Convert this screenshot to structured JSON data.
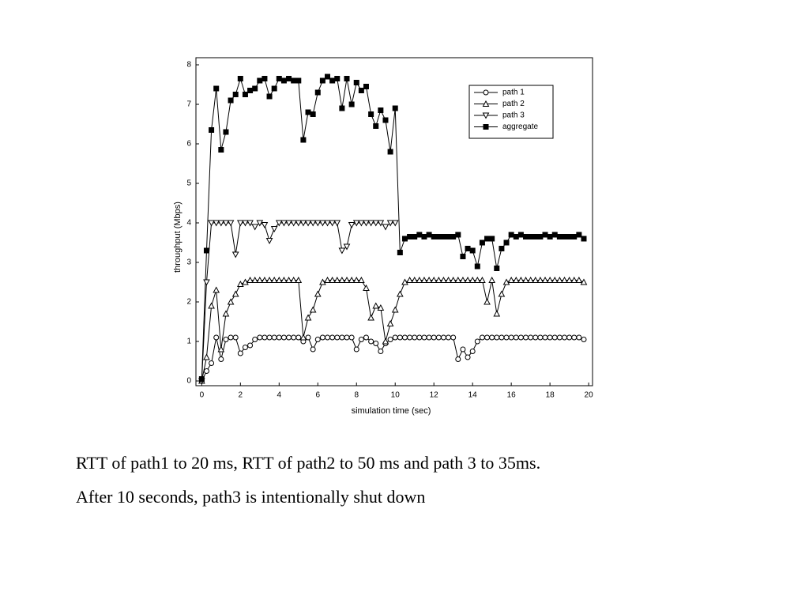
{
  "chart_data": {
    "type": "line",
    "xlabel": "simulation time (sec)",
    "ylabel": "throughput (Mbps)",
    "xlim": [
      -0.3,
      20.2
    ],
    "ylim": [
      -0.12,
      8.18
    ],
    "xticks": [
      0,
      2,
      4,
      6,
      8,
      10,
      12,
      14,
      16,
      18,
      20
    ],
    "yticks": [
      0,
      1,
      2,
      3,
      4,
      5,
      6,
      7,
      8
    ],
    "legend": "upper right",
    "x": [
      0,
      0.25,
      0.5,
      0.75,
      1,
      1.25,
      1.5,
      1.75,
      2,
      2.25,
      2.5,
      2.75,
      3,
      3.25,
      3.5,
      3.75,
      4,
      4.25,
      4.5,
      4.75,
      5,
      5.25,
      5.5,
      5.75,
      6,
      6.25,
      6.5,
      6.75,
      7,
      7.25,
      7.5,
      7.75,
      8,
      8.25,
      8.5,
      8.75,
      9,
      9.25,
      9.5,
      9.75,
      10,
      10.25,
      10.5,
      10.75,
      11,
      11.25,
      11.5,
      11.75,
      12,
      12.25,
      12.5,
      12.75,
      13,
      13.25,
      13.5,
      13.75,
      14,
      14.25,
      14.5,
      14.75,
      15,
      15.25,
      15.5,
      15.75,
      16,
      16.25,
      16.5,
      16.75,
      17,
      17.25,
      17.5,
      17.75,
      18,
      18.25,
      18.5,
      18.75,
      19,
      19.25,
      19.5,
      19.75
    ],
    "series": [
      {
        "name": "path 1",
        "color": "#000000",
        "marker": "circle",
        "values": [
          0,
          0.25,
          0.45,
          1.1,
          0.55,
          1.05,
          1.1,
          1.1,
          0.7,
          0.85,
          0.9,
          1.05,
          1.1,
          1.1,
          1.1,
          1.1,
          1.1,
          1.1,
          1.1,
          1.1,
          1.1,
          1.0,
          1.1,
          0.8,
          1.05,
          1.1,
          1.1,
          1.1,
          1.1,
          1.1,
          1.1,
          1.1,
          0.8,
          1.05,
          1.1,
          1.0,
          0.95,
          0.75,
          0.95,
          1.05,
          1.1,
          1.1,
          1.1,
          1.1,
          1.1,
          1.1,
          1.1,
          1.1,
          1.1,
          1.1,
          1.1,
          1.1,
          1.1,
          0.55,
          0.8,
          0.6,
          0.75,
          1.0,
          1.1,
          1.1,
          1.1,
          1.1,
          1.1,
          1.1,
          1.1,
          1.1,
          1.1,
          1.1,
          1.1,
          1.1,
          1.1,
          1.1,
          1.1,
          1.1,
          1.1,
          1.1,
          1.1,
          1.1,
          1.1,
          1.05
        ]
      },
      {
        "name": "path 2",
        "color": "#000000",
        "marker": "triangle-up",
        "values": [
          0,
          0.6,
          1.9,
          2.3,
          0.8,
          1.7,
          2.0,
          2.2,
          2.45,
          2.5,
          2.55,
          2.55,
          2.55,
          2.55,
          2.55,
          2.55,
          2.55,
          2.55,
          2.55,
          2.55,
          2.55,
          1.1,
          1.6,
          1.8,
          2.2,
          2.5,
          2.55,
          2.55,
          2.55,
          2.55,
          2.55,
          2.55,
          2.55,
          2.55,
          2.35,
          1.6,
          1.9,
          1.85,
          1.0,
          1.45,
          1.8,
          2.2,
          2.5,
          2.55,
          2.55,
          2.55,
          2.55,
          2.55,
          2.55,
          2.55,
          2.55,
          2.55,
          2.55,
          2.55,
          2.55,
          2.55,
          2.55,
          2.55,
          2.55,
          2.0,
          2.55,
          1.7,
          2.2,
          2.5,
          2.55,
          2.55,
          2.55,
          2.55,
          2.55,
          2.55,
          2.55,
          2.55,
          2.55,
          2.55,
          2.55,
          2.55,
          2.55,
          2.55,
          2.55,
          2.5
        ]
      },
      {
        "name": "path 3",
        "color": "#000000",
        "marker": "triangle-down",
        "values": [
          0,
          2.5,
          4,
          4,
          4,
          4,
          4,
          3.2,
          4,
          4,
          4,
          3.9,
          4,
          3.95,
          3.55,
          3.85,
          4,
          4,
          4,
          4,
          4,
          4,
          4,
          4,
          4,
          4,
          4,
          4,
          4,
          3.3,
          3.4,
          3.95,
          4,
          4,
          4,
          4,
          4,
          4,
          3.9,
          4,
          4,
          null,
          null,
          null,
          null,
          null,
          null,
          null,
          null,
          null,
          null,
          null,
          null,
          null,
          null,
          null,
          null,
          null,
          null,
          null,
          null,
          null,
          null,
          null,
          null,
          null,
          null,
          null,
          null,
          null,
          null,
          null,
          null,
          null,
          null,
          null,
          null,
          null,
          null,
          null
        ]
      },
      {
        "name": "aggregate",
        "color": "#000000",
        "marker": "square",
        "values": [
          0.05,
          3.3,
          6.35,
          7.4,
          5.85,
          6.3,
          7.1,
          7.25,
          7.65,
          7.25,
          7.35,
          7.4,
          7.6,
          7.65,
          7.2,
          7.4,
          7.65,
          7.6,
          7.65,
          7.6,
          7.6,
          6.1,
          6.8,
          6.75,
          7.3,
          7.6,
          7.7,
          7.6,
          7.65,
          6.9,
          7.65,
          7.0,
          7.55,
          7.35,
          7.45,
          6.75,
          6.45,
          6.85,
          6.6,
          5.8,
          6.9,
          3.25,
          3.6,
          3.65,
          3.65,
          3.7,
          3.65,
          3.7,
          3.65,
          3.65,
          3.65,
          3.65,
          3.65,
          3.7,
          3.15,
          3.35,
          3.3,
          2.9,
          3.5,
          3.6,
          3.6,
          2.85,
          3.35,
          3.5,
          3.7,
          3.65,
          3.7,
          3.65,
          3.65,
          3.65,
          3.65,
          3.7,
          3.65,
          3.7,
          3.65,
          3.65,
          3.65,
          3.65,
          3.7,
          3.6
        ]
      }
    ]
  },
  "caption": [
    "RTT of path1 to 20 ms, RTT of path2 to 50 ms and path 3 to 35ms.",
    "After 10 seconds, path3 is intentionally shut down"
  ]
}
